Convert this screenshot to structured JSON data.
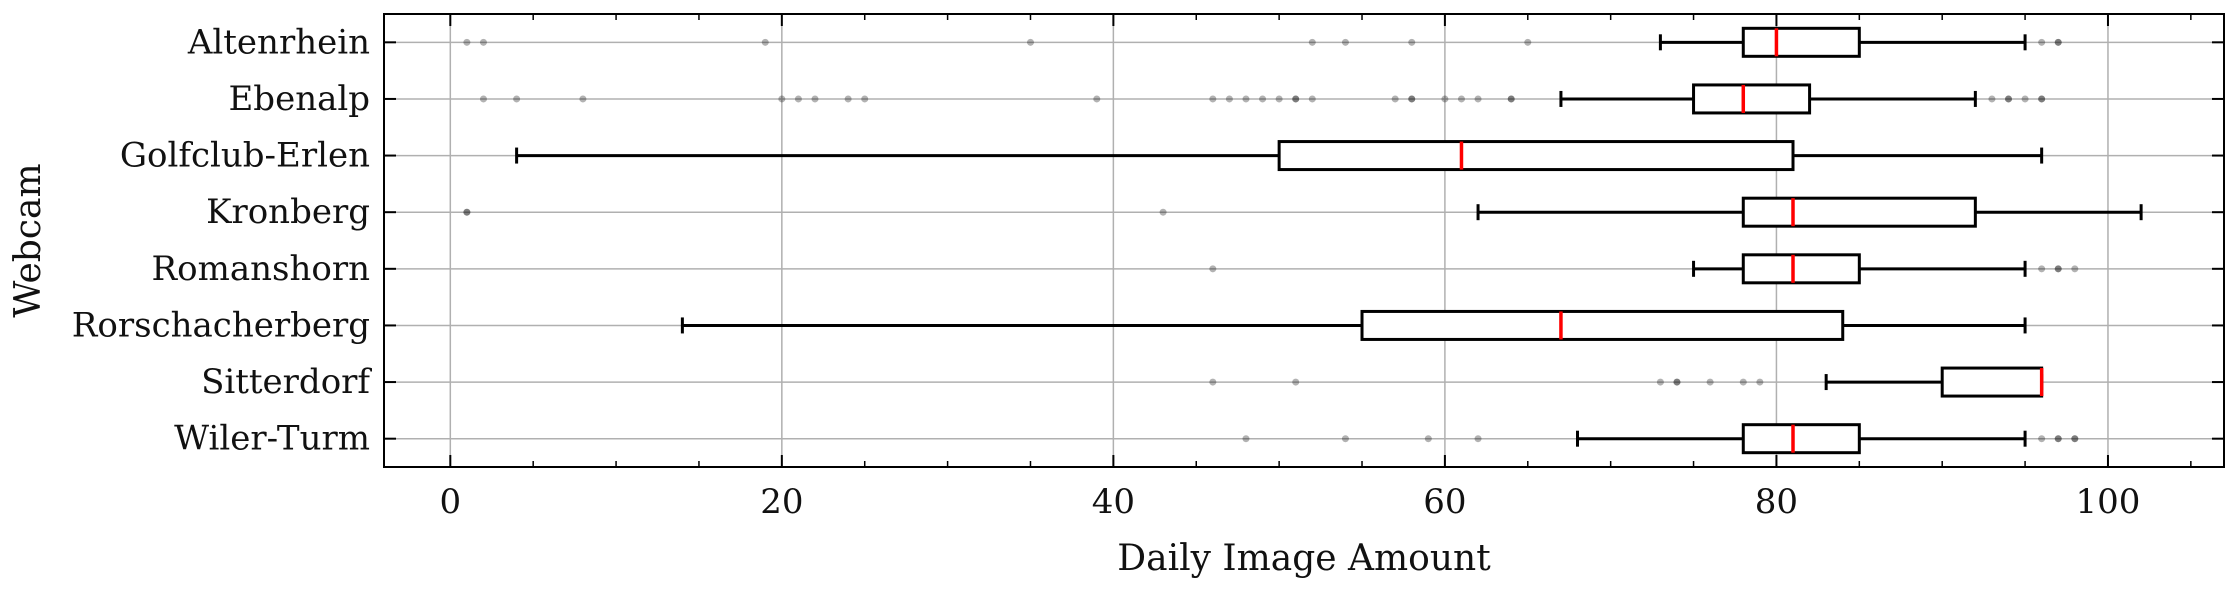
{
  "chart_data": {
    "type": "boxplot",
    "orientation": "horizontal",
    "xlabel": "Daily Image Amount",
    "ylabel": "Webcam",
    "xlim": [
      -4,
      107
    ],
    "xticks": [
      0,
      20,
      40,
      60,
      80,
      100
    ],
    "xtick_labels": [
      "0",
      "20",
      "40",
      "60",
      "80",
      "100"
    ],
    "grid": true,
    "colors": {
      "box": "#000000",
      "median": "#ff0000",
      "grid": "#b0b0b0",
      "outlier": "#000000"
    },
    "categories": [
      "Altenrhein",
      "Ebenalp",
      "Golfclub-Erlen",
      "Kronberg",
      "Romanshorn",
      "Rorschacherberg",
      "Sitterdorf",
      "Wiler-Turm"
    ],
    "boxes": [
      {
        "name": "Altenrhein",
        "whisker_low": 73,
        "q1": 78,
        "median": 80,
        "q3": 85,
        "whisker_high": 95,
        "outliers": [
          1,
          2,
          19,
          35,
          52,
          54,
          58,
          65,
          96,
          97,
          97
        ]
      },
      {
        "name": "Ebenalp",
        "whisker_low": 67,
        "q1": 75,
        "median": 78,
        "q3": 82,
        "whisker_high": 92,
        "outliers": [
          2,
          4,
          8,
          20,
          21,
          22,
          24,
          25,
          39,
          46,
          47,
          48,
          49,
          50,
          51,
          51,
          52,
          57,
          58,
          58,
          60,
          61,
          62,
          64,
          64,
          93,
          94,
          94,
          95,
          96,
          96
        ]
      },
      {
        "name": "Golfclub-Erlen",
        "whisker_low": 4,
        "q1": 50,
        "median": 61,
        "q3": 81,
        "whisker_high": 96,
        "outliers": []
      },
      {
        "name": "Kronberg",
        "whisker_low": 62,
        "q1": 78,
        "median": 81,
        "q3": 92,
        "whisker_high": 102,
        "outliers": [
          1,
          1,
          43
        ]
      },
      {
        "name": "Romanshorn",
        "whisker_low": 75,
        "q1": 78,
        "median": 81,
        "q3": 85,
        "whisker_high": 95,
        "outliers": [
          46,
          96,
          97,
          97,
          98
        ]
      },
      {
        "name": "Rorschacherberg",
        "whisker_low": 14,
        "q1": 55,
        "median": 67,
        "q3": 84,
        "whisker_high": 95,
        "outliers": []
      },
      {
        "name": "Sitterdorf",
        "whisker_low": 83,
        "q1": 90,
        "median": 96,
        "q3": 96,
        "whisker_high": 96,
        "outliers": [
          46,
          51,
          73,
          74,
          74,
          76,
          78,
          79
        ]
      },
      {
        "name": "Wiler-Turm",
        "whisker_low": 68,
        "q1": 78,
        "median": 81,
        "q3": 85,
        "whisker_high": 95,
        "outliers": [
          48,
          54,
          59,
          62,
          96,
          97,
          97,
          98,
          98
        ]
      }
    ]
  }
}
